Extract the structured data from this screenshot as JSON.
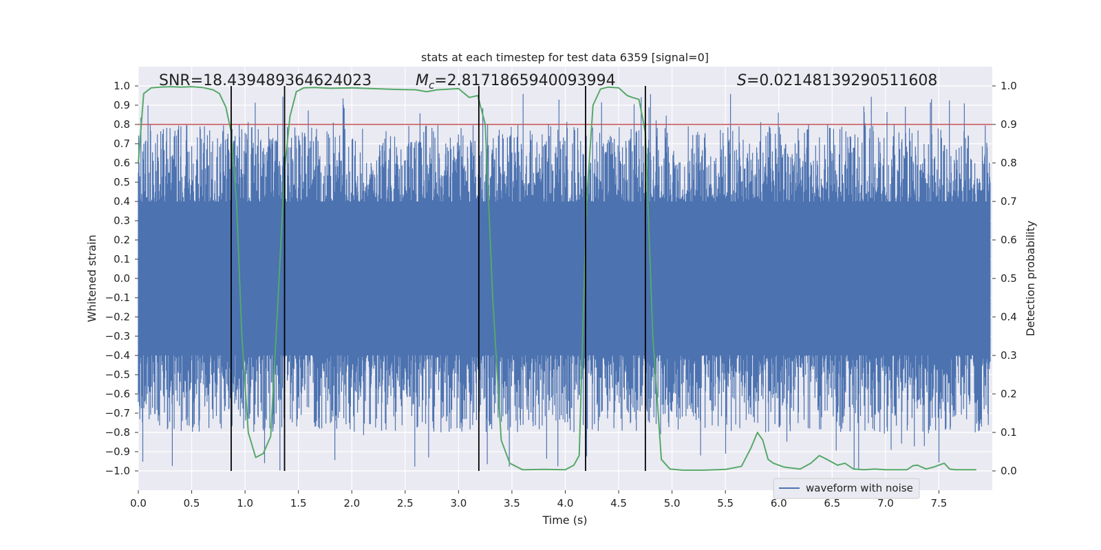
{
  "chart_data": {
    "type": "line",
    "title": "stats at each timestep for test data 6359 [signal=0]",
    "xlabel": "Time (s)",
    "ylabel": "Whitened strain",
    "ylabel_right": "Detection probability",
    "xlim": [
      0.0,
      8.0
    ],
    "ylim": [
      -1.1,
      1.1
    ],
    "ylim_right": [
      -0.05,
      1.05
    ],
    "grid": true,
    "x_ticks": [
      "0.0",
      "0.5",
      "1.0",
      "1.5",
      "2.0",
      "2.5",
      "3.0",
      "3.5",
      "4.0",
      "4.5",
      "5.0",
      "5.5",
      "6.0",
      "6.5",
      "7.0",
      "7.5"
    ],
    "y_ticks": [
      "1.0",
      "0.9",
      "0.8",
      "0.7",
      "0.6",
      "0.5",
      "0.4",
      "0.3",
      "0.2",
      "0.1",
      "0.0",
      "-0.1",
      "-0.2",
      "-0.3",
      "-0.4",
      "-0.5",
      "-0.6",
      "-0.7",
      "-0.8",
      "-0.9",
      "-1.0"
    ],
    "y_ticks_right": [
      "1.0",
      "0.9",
      "0.8",
      "0.7",
      "0.6",
      "0.5",
      "0.4",
      "0.3",
      "0.2",
      "0.1",
      "0.0"
    ],
    "annotations": {
      "snr": "SNR=18.439489364624023",
      "mc_symbol": "M",
      "mc_sub": "c",
      "mc_value": "=2.8171865940093994",
      "s_symbol": "S",
      "s_value": "=0.02148139290511608"
    },
    "legend": {
      "label": "waveform with noise",
      "placement": "lower-right"
    },
    "threshold": {
      "value": 0.9,
      "axis": "right",
      "color": "#c44e52"
    },
    "event_lines": [
      0.87,
      1.37,
      3.19,
      4.19,
      4.75
    ],
    "event_line_range": [
      -1.0,
      1.0
    ],
    "series": [
      {
        "name": "waveform with noise",
        "axis": "left",
        "color": "#4c72b0",
        "rendering": "dense noise band",
        "band_core": [
          -0.4,
          0.4
        ],
        "band_extent": [
          -1.0,
          1.0
        ]
      },
      {
        "name": "",
        "axis": "right",
        "color": "#55a868",
        "x": [
          0.0,
          0.05,
          0.12,
          0.2,
          0.3,
          0.4,
          0.5,
          0.6,
          0.7,
          0.76,
          0.82,
          0.87,
          0.92,
          0.97,
          1.03,
          1.1,
          1.17,
          1.24,
          1.3,
          1.37,
          1.42,
          1.48,
          1.55,
          1.65,
          1.8,
          2.0,
          2.2,
          2.4,
          2.6,
          2.7,
          2.8,
          3.0,
          3.1,
          3.18,
          3.25,
          3.32,
          3.4,
          3.48,
          3.6,
          3.8,
          4.0,
          4.08,
          4.13,
          4.2,
          4.26,
          4.33,
          4.4,
          4.5,
          4.58,
          4.63,
          4.69,
          4.75,
          4.82,
          4.9,
          4.98,
          5.1,
          5.3,
          5.5,
          5.65,
          5.74,
          5.8,
          5.85,
          5.9,
          5.95,
          6.05,
          6.2,
          6.3,
          6.38,
          6.45,
          6.55,
          6.62,
          6.7,
          6.8,
          6.9,
          7.0,
          7.2,
          7.26,
          7.3,
          7.38,
          7.45,
          7.5,
          7.55,
          7.6,
          7.65,
          7.72,
          7.85
        ],
        "values": [
          0.8,
          0.98,
          0.995,
          0.997,
          0.998,
          0.997,
          0.998,
          0.996,
          0.99,
          0.98,
          0.945,
          0.88,
          0.7,
          0.35,
          0.1,
          0.035,
          0.045,
          0.09,
          0.4,
          0.78,
          0.92,
          0.985,
          0.995,
          0.996,
          0.994,
          0.995,
          0.993,
          0.991,
          0.99,
          0.985,
          0.99,
          0.993,
          0.97,
          0.975,
          0.9,
          0.45,
          0.08,
          0.02,
          0.003,
          0.004,
          0.003,
          0.015,
          0.04,
          0.7,
          0.95,
          0.992,
          0.997,
          0.995,
          0.975,
          0.97,
          0.965,
          0.88,
          0.35,
          0.03,
          0.005,
          0.002,
          0.002,
          0.004,
          0.012,
          0.06,
          0.1,
          0.08,
          0.03,
          0.02,
          0.01,
          0.005,
          0.02,
          0.04,
          0.03,
          0.015,
          0.02,
          0.005,
          0.003,
          0.005,
          0.003,
          0.003,
          0.014,
          0.015,
          0.005,
          0.01,
          0.015,
          0.02,
          0.005,
          0.003,
          0.003,
          0.003
        ]
      }
    ]
  }
}
